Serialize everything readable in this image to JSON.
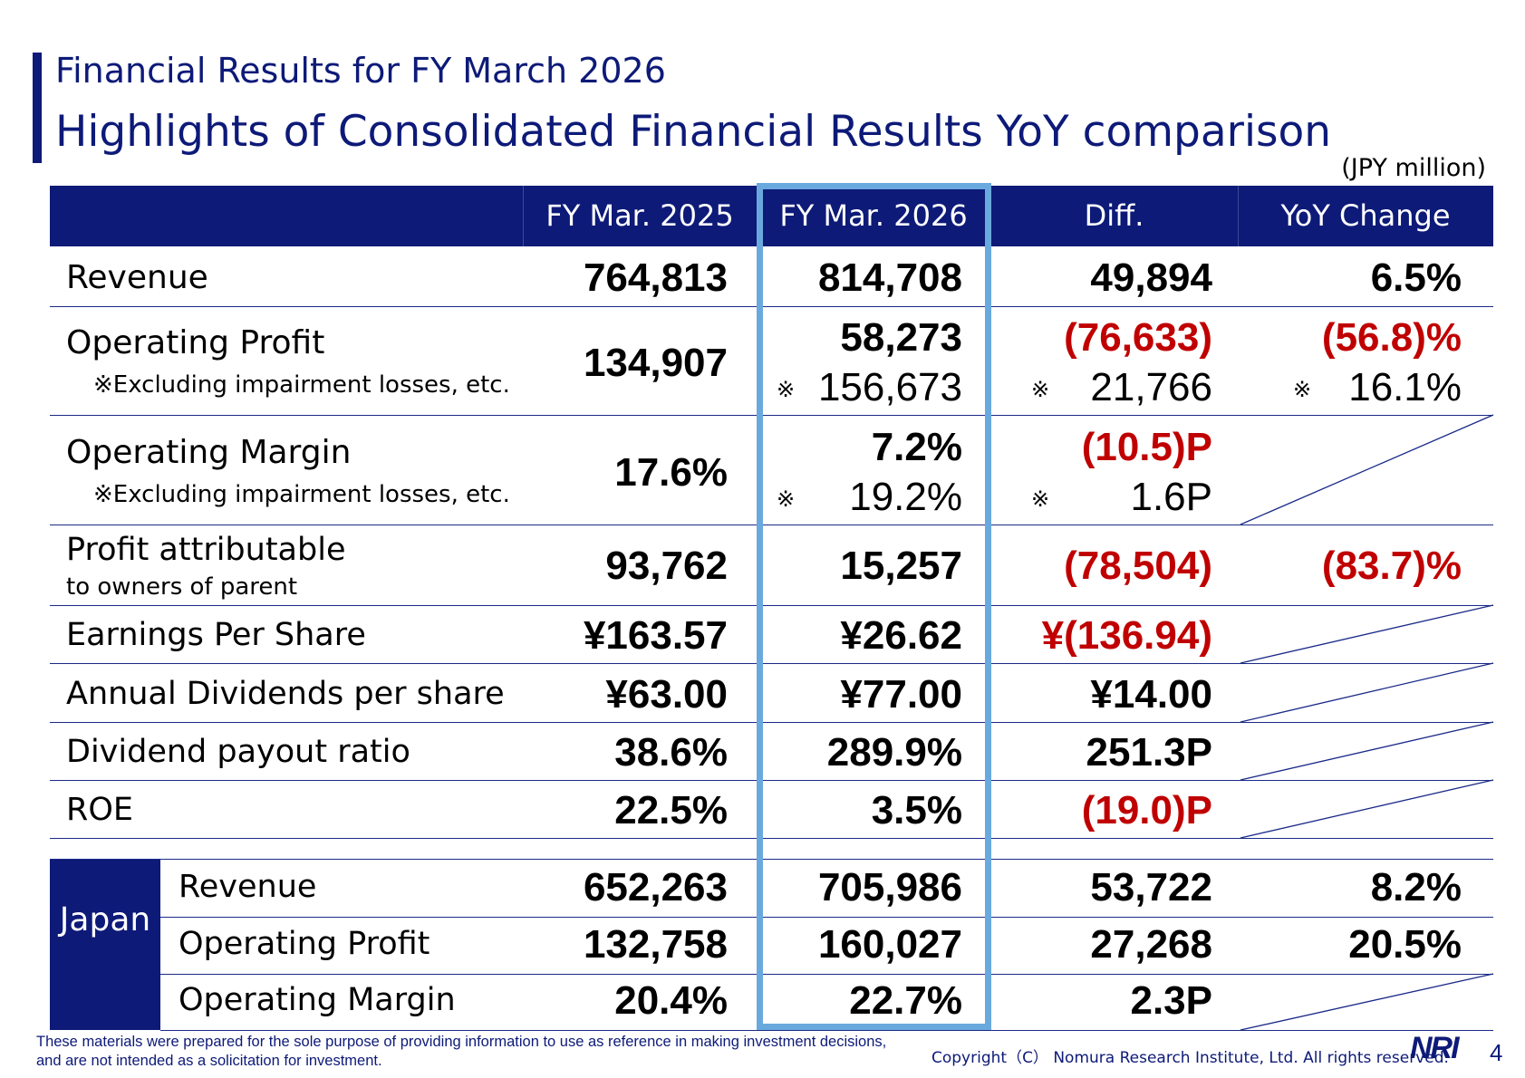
{
  "header": {
    "title": "Financial Results for FY March 2026",
    "subtitle": "Highlights of Consolidated Financial Results  YoY comparison",
    "unit": "(JPY million)"
  },
  "columns": {
    "prev": "FY Mar. 2025",
    "curr": "FY Mar. 2026",
    "diff": "Diff.",
    "yoy": "YoY Change"
  },
  "rows": {
    "revenue": {
      "label": "Revenue",
      "prev": "764,813",
      "curr": "814,708",
      "diff": "49,894",
      "yoy": "6.5%"
    },
    "op_profit": {
      "label": "Operating Profit",
      "note": "※Excluding impairment losses, etc.",
      "prev": "134,907",
      "curr": "58,273",
      "curr_ex": "156,673",
      "diff": "(76,633)",
      "diff_ex": "21,766",
      "yoy": "(56.8)%",
      "yoy_ex": "16.1%",
      "mark": "※"
    },
    "op_margin": {
      "label": "Operating Margin",
      "note": "※Excluding impairment losses, etc.",
      "prev": "17.6%",
      "curr": "7.2%",
      "curr_ex": "19.2%",
      "diff": "(10.5)P",
      "diff_ex": "1.6P",
      "mark": "※"
    },
    "profit_attr": {
      "label": "Profit attributable",
      "label2": "to owners of parent",
      "prev": "93,762",
      "curr": "15,257",
      "diff": "(78,504)",
      "yoy": "(83.7)%"
    },
    "eps": {
      "label": "Earnings Per Share",
      "prev": "¥163.57",
      "curr": "¥26.62",
      "diff": "¥(136.94)"
    },
    "dividends": {
      "label": "Annual Dividends per share",
      "prev": "¥63.00",
      "curr": "¥77.00",
      "diff": "¥14.00"
    },
    "payout": {
      "label": "Dividend payout ratio",
      "prev": "38.6%",
      "curr": "289.9%",
      "diff": "251.3P"
    },
    "roe": {
      "label": "ROE",
      "prev": "22.5%",
      "curr": "3.5%",
      "diff": "(19.0)P"
    }
  },
  "japan": {
    "label": "Japan",
    "revenue": {
      "label": "Revenue",
      "prev": "652,263",
      "curr": "705,986",
      "diff": "53,722",
      "yoy": "8.2%"
    },
    "op_profit": {
      "label": "Operating Profit",
      "prev": "132,758",
      "curr": "160,027",
      "diff": "27,268",
      "yoy": "20.5%"
    },
    "op_margin": {
      "label": "Operating Margin",
      "prev": "20.4%",
      "curr": "22.7%",
      "diff": "2.3P"
    }
  },
  "footer": {
    "disclaimer": "These materials were prepared for the sole purpose of providing information to use as reference in making investment decisions, and are not intended as a solicitation for investment.",
    "copyright": "Copyright（C） Nomura Research Institute, Ltd. All rights reserved.",
    "logo": "NRI",
    "page": "4"
  },
  "colors": {
    "navy": "#0d1a78",
    "red": "#c00000",
    "highlight": "#6aa9dd"
  }
}
